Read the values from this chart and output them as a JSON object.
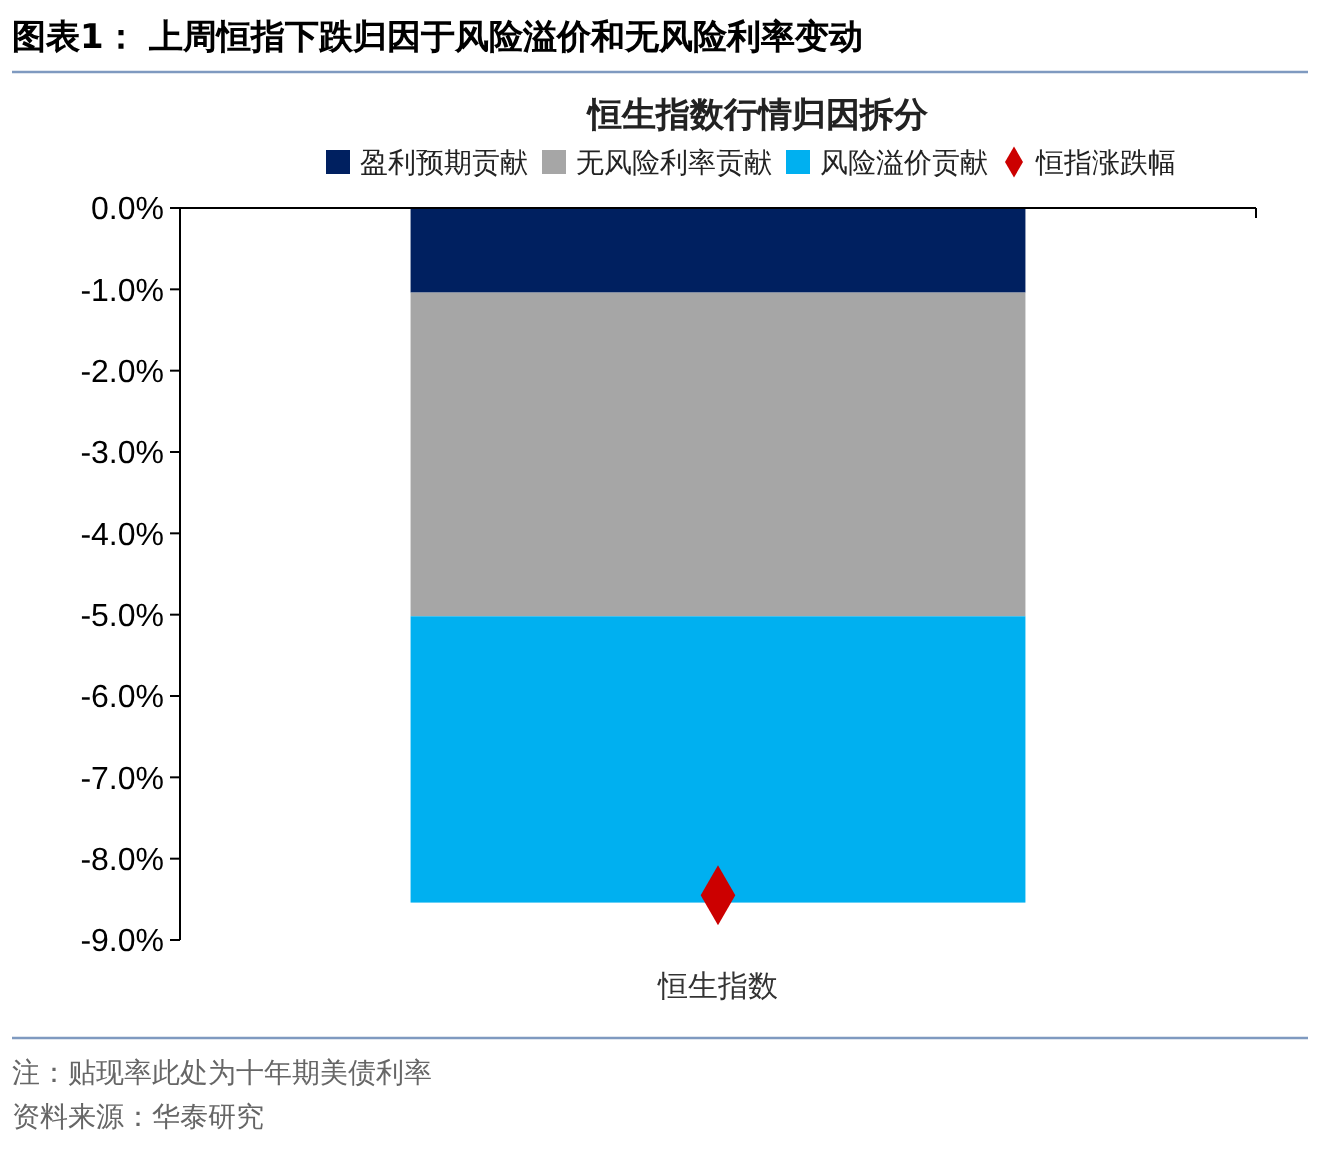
{
  "chart_data": {
    "type": "bar",
    "stacked": true,
    "title": "图表1：  上周恒指下跌归因于风险溢价和无风险利率变动",
    "subtitle": "恒生指数行情归因拆分",
    "categories": [
      "恒生指数"
    ],
    "series": [
      {
        "name": "盈利预期贡献",
        "color": "#002060",
        "values": [
          -1.04
        ]
      },
      {
        "name": "无风险利率贡献",
        "color": "#a6a6a6",
        "values": [
          -3.98
        ]
      },
      {
        "name": "风险溢价贡献",
        "color": "#00b0f0",
        "values": [
          -3.52
        ]
      },
      {
        "name": "恒指涨跌幅",
        "color": "#cc0000",
        "type": "scatter",
        "marker": "diamond",
        "values": [
          -8.45
        ]
      }
    ],
    "ylim": [
      -9,
      0
    ],
    "yticks": [
      {
        "value": 0,
        "label": "0.0%"
      },
      {
        "value": -1,
        "label": "-1.0%"
      },
      {
        "value": -2,
        "label": "-2.0%"
      },
      {
        "value": -3,
        "label": "-3.0%"
      },
      {
        "value": -4,
        "label": "-4.0%"
      },
      {
        "value": -5,
        "label": "-5.0%"
      },
      {
        "value": -6,
        "label": "-6.0%"
      },
      {
        "value": -7,
        "label": "-7.0%"
      },
      {
        "value": -8,
        "label": "-8.0%"
      },
      {
        "value": -9,
        "label": "-9.0%"
      }
    ],
    "grid": false,
    "legend": "top",
    "annotations": [
      "注：贴现率此处为十年期美债利率",
      "资料来源：华泰研究"
    ]
  }
}
